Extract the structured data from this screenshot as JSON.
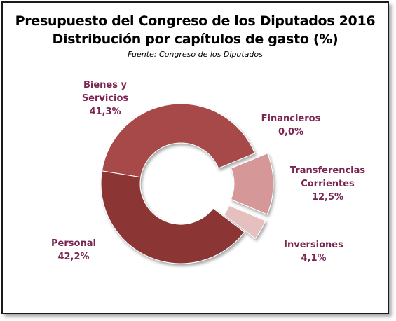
{
  "chart_data": {
    "type": "pie",
    "style": "doughnut",
    "title": "Presupuesto del Congreso de los Diputados 2016",
    "subtitle": "Distribución por capítulos de gasto (%)",
    "source": "Fuente: Congreso de los Diputados",
    "legend": "none",
    "slices": [
      {
        "label_lines": [
          "Bienes y",
          "Servicios"
        ],
        "value": 41.3,
        "value_text": "41,3%",
        "color": "#a84a4a",
        "exploded": false
      },
      {
        "label_lines": [
          "Financieros"
        ],
        "value": 0.0,
        "value_text": "0,0%",
        "color": "#c9868a",
        "exploded": true
      },
      {
        "label_lines": [
          "Transferencias",
          "Corrientes"
        ],
        "value": 12.5,
        "value_text": "12,5%",
        "color": "#d59797",
        "exploded": true
      },
      {
        "label_lines": [
          "Inversiones"
        ],
        "value": 4.1,
        "value_text": "4,1%",
        "color": "#e6bfbf",
        "exploded": true
      },
      {
        "label_lines": [
          "Personal"
        ],
        "value": 42.2,
        "value_text": "42,2%",
        "color": "#8c3434",
        "exploded": false
      }
    ],
    "label_color": "#7a2452"
  }
}
